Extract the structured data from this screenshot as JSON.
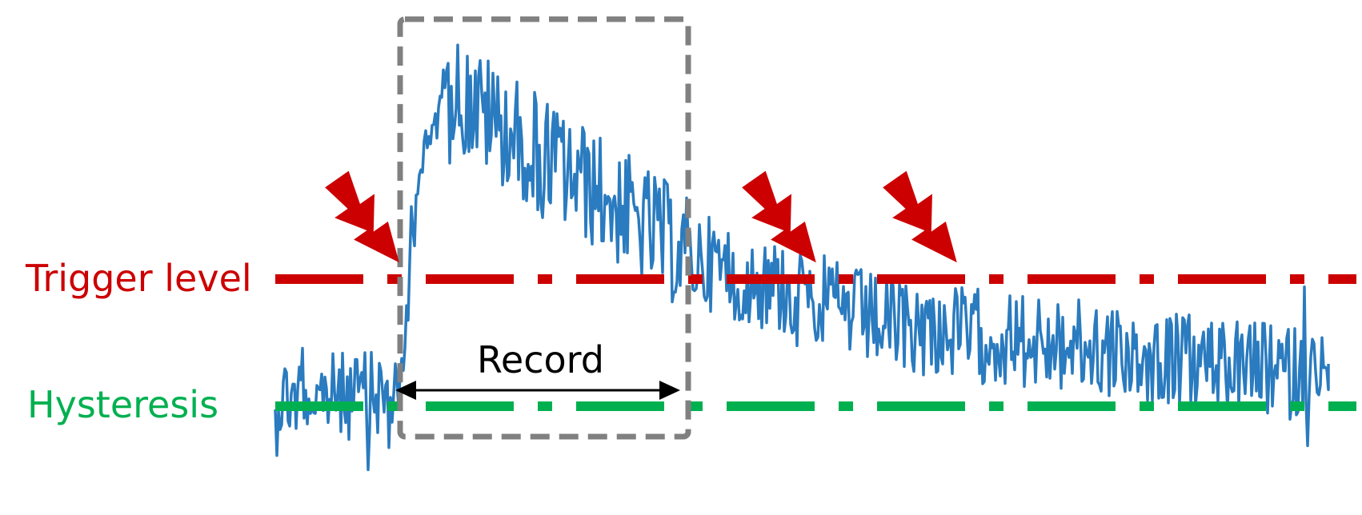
{
  "labels": {
    "trigger": "Trigger level",
    "hysteresis": "Hysteresis",
    "record": "Record"
  },
  "colors": {
    "trigger": "#cc0000",
    "hysteresis": "#00b050",
    "signal": "#2a7bbf",
    "window": "#808080",
    "bolt": "#cc0000",
    "arrow": "#000000",
    "text": "#000000"
  },
  "icons": {
    "trigger_event": "lightning-bolt-icon"
  },
  "trigger_events_count": 3
}
